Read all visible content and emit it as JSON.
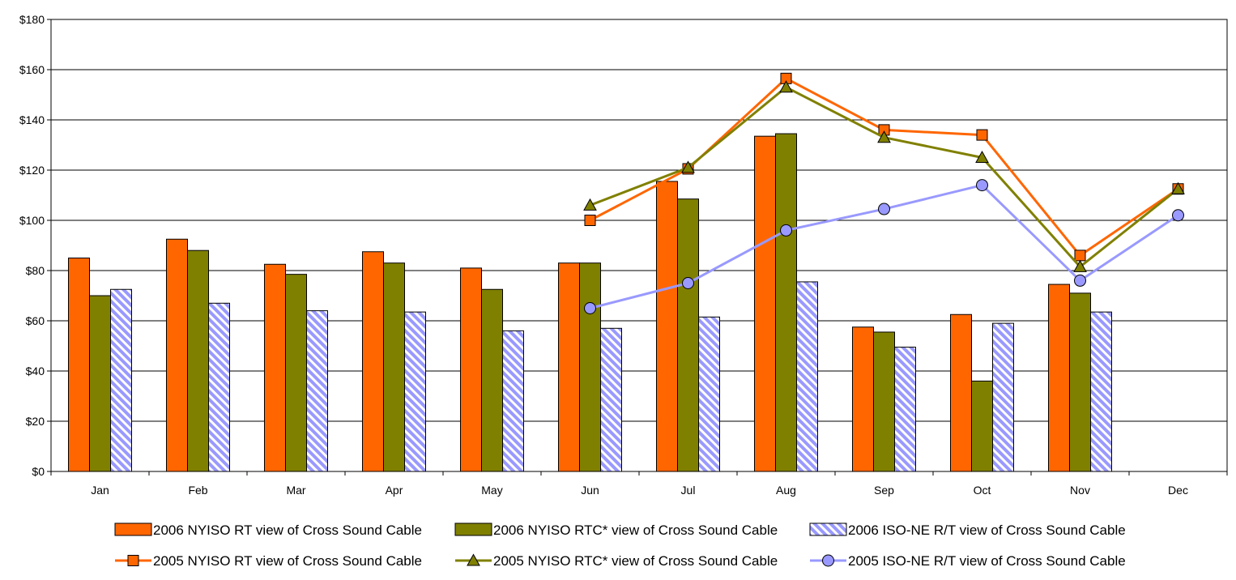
{
  "chart_data": {
    "type": "bar",
    "title": "",
    "xlabel": "",
    "ylabel": "",
    "ylim": [
      0,
      180
    ],
    "yticks": [
      "$0",
      "$20",
      "$40",
      "$60",
      "$80",
      "$100",
      "$120",
      "$140",
      "$160",
      "$180"
    ],
    "categories": [
      "Jan",
      "Feb",
      "Mar",
      "Apr",
      "May",
      "Jun",
      "Jul",
      "Aug",
      "Sep",
      "Oct",
      "Nov",
      "Dec"
    ],
    "grid": true,
    "legend_position": "bottom",
    "bar_series": [
      {
        "name": "2006 NYISO RT view of Cross Sound Cable",
        "color": "#ff6600",
        "pattern": "solid",
        "values": [
          85,
          92.5,
          82.5,
          87.5,
          81,
          83,
          115.5,
          133.5,
          57.5,
          62.5,
          74.5,
          null
        ]
      },
      {
        "name": "2006 NYISO RTC* view of Cross Sound Cable",
        "color": "#808000",
        "pattern": "solid",
        "values": [
          70,
          88,
          78.5,
          83,
          72.5,
          83,
          108.5,
          134.5,
          55.5,
          36,
          71,
          null
        ]
      },
      {
        "name": "2006 ISO-NE R/T view of Cross Sound Cable",
        "color": "#9999ff",
        "pattern": "diagonal-stripes",
        "values": [
          72.5,
          67,
          64,
          63.5,
          56,
          57,
          61.5,
          75.5,
          49.5,
          59,
          63.5,
          null
        ]
      }
    ],
    "line_series": [
      {
        "name": "2005 NYISO RT view of Cross Sound Cable",
        "color": "#ff6600",
        "marker": "square",
        "marker_fill": "#ff6600",
        "values": [
          null,
          null,
          null,
          null,
          null,
          100,
          120.5,
          156.5,
          136,
          134,
          86,
          112.5
        ]
      },
      {
        "name": "2005 NYISO RTC* view of Cross Sound Cable",
        "color": "#808000",
        "marker": "triangle",
        "marker_fill": "#808000",
        "values": [
          null,
          null,
          null,
          null,
          null,
          106,
          121,
          153,
          133,
          125,
          81.5,
          112.5
        ]
      },
      {
        "name": "2005 ISO-NE R/T view of Cross Sound Cable",
        "color": "#9999ff",
        "marker": "circle",
        "marker_fill": "#9999ff",
        "values": [
          null,
          null,
          null,
          null,
          null,
          65,
          75,
          96,
          104.5,
          114,
          76,
          102
        ]
      }
    ]
  }
}
